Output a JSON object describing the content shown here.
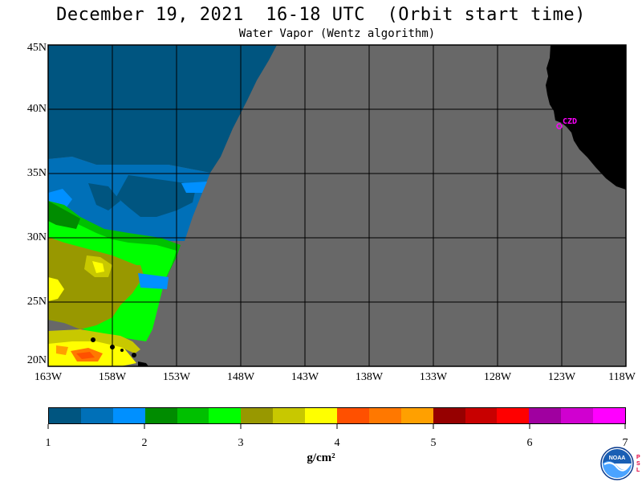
{
  "header": {
    "title": "December 19, 2021  16-18 UTC  (Orbit start time)",
    "subtitle": "Water Vapor (Wentz algorithm)"
  },
  "map": {
    "latitude_labels": [
      "45N",
      "40N",
      "35N",
      "30N",
      "25N",
      "20N"
    ],
    "longitude_labels": [
      "163W",
      "158W",
      "153W",
      "148W",
      "143W",
      "138W",
      "133W",
      "128W",
      "123W",
      "118W"
    ],
    "station_label": "CZD",
    "colors": {
      "no_data": "#686868",
      "land": "#000000",
      "grid": "#000000",
      "station": "#ff00ff"
    }
  },
  "colorbar": {
    "tick_labels": [
      "1",
      "2",
      "3",
      "4",
      "5",
      "6",
      "7"
    ],
    "units": "g/cm²",
    "colors": [
      "#005580",
      "#0070b8",
      "#0090ff",
      "#008c00",
      "#00c000",
      "#00ff00",
      "#989800",
      "#c8c800",
      "#ffff00",
      "#ff5000",
      "#ff7800",
      "#ffa000",
      "#960000",
      "#c80000",
      "#ff0000",
      "#a000a0",
      "#d000d0",
      "#ff00ff"
    ]
  },
  "logo": {
    "text": "NOAA",
    "side_text": "PSL"
  }
}
